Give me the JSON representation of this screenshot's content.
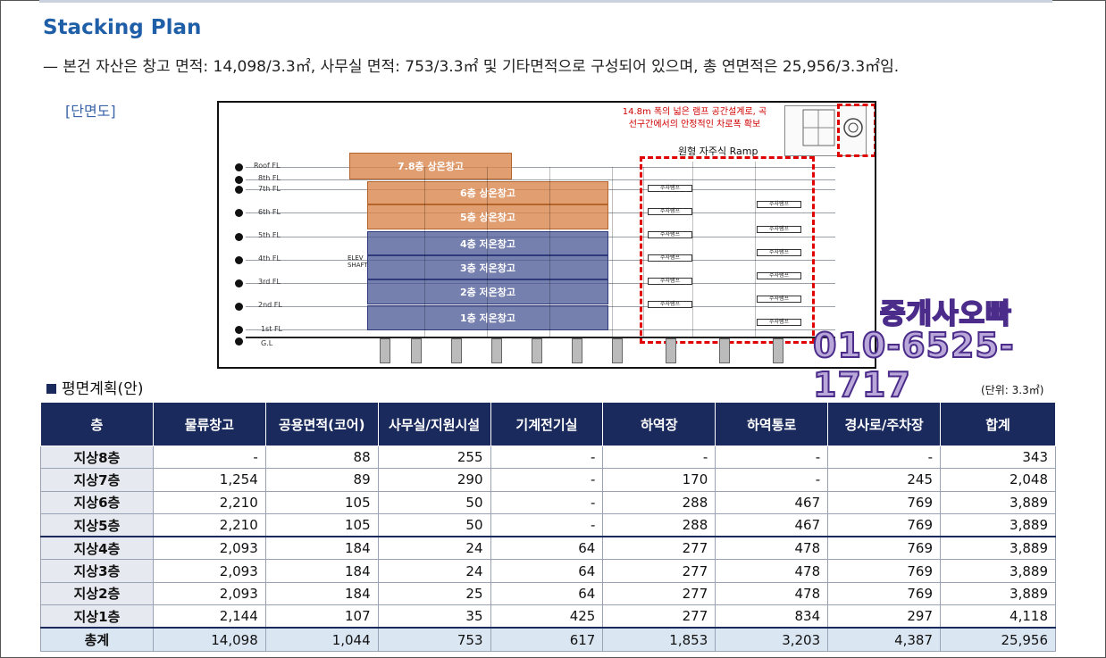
{
  "header": {
    "title": "Stacking Plan",
    "subtitle": "— 본건 자산은 창고 면적: 14,098/3.3㎡, 사무실 면적: 753/3.3㎡ 및 기타면적으로 구성되어 있으며, 총 연면적은 25,956/3.3㎡임.",
    "section_link": "[단면도]"
  },
  "diagram": {
    "note_line1": "14.8m 폭의 넓은 램프 공간설계로, 곡",
    "note_line2": "선구간에서의 안정적인 차로폭 확보",
    "ramp_caption": "원형 자주식 Ramp",
    "floor_levels": [
      "Roof FL",
      "8th FL",
      "7th FL",
      "6th FL",
      "5th FL",
      "4th FL",
      "3rd FL",
      "2nd FL",
      "1st FL",
      "G.L"
    ],
    "bands": [
      {
        "label": "7.8층 상온창고",
        "color": "orange"
      },
      {
        "label": "6층 상온창고",
        "color": "orange"
      },
      {
        "label": "5층 상온창고",
        "color": "orange"
      },
      {
        "label": "4층 저온창고",
        "color": "blue"
      },
      {
        "label": "3층 저온창고",
        "color": "blue"
      },
      {
        "label": "2층 저온창고",
        "color": "blue"
      },
      {
        "label": "1층 저온창고",
        "color": "blue"
      }
    ],
    "ramp_slab_label": "주차램프",
    "elev_label": "ELEV SHAFT"
  },
  "watermark": {
    "line1": "중개사오빠",
    "line2": "010-6525-1717"
  },
  "table_section": {
    "title": "평면계획(안)",
    "unit": "(단위: 3.3㎡)",
    "columns": [
      "층",
      "물류창고",
      "공용면적(코어)",
      "사무실/지원시설",
      "기계전기실",
      "하역장",
      "하역통로",
      "경사로/주차장",
      "합계"
    ],
    "rows": [
      {
        "floor": "지상8층",
        "cells": [
          "-",
          "88",
          "255",
          "-",
          "-",
          "-",
          "-",
          "343"
        ]
      },
      {
        "floor": "지상7층",
        "cells": [
          "1,254",
          "89",
          "290",
          "-",
          "170",
          "-",
          "245",
          "2,048"
        ]
      },
      {
        "floor": "지상6층",
        "cells": [
          "2,210",
          "105",
          "50",
          "-",
          "288",
          "467",
          "769",
          "3,889"
        ]
      },
      {
        "floor": "지상5층",
        "cells": [
          "2,210",
          "105",
          "50",
          "-",
          "288",
          "467",
          "769",
          "3,889"
        ]
      },
      {
        "floor": "지상4층",
        "cells": [
          "2,093",
          "184",
          "24",
          "64",
          "277",
          "478",
          "769",
          "3,889"
        ]
      },
      {
        "floor": "지상3층",
        "cells": [
          "2,093",
          "184",
          "24",
          "64",
          "277",
          "478",
          "769",
          "3,889"
        ]
      },
      {
        "floor": "지상2층",
        "cells": [
          "2,093",
          "184",
          "25",
          "64",
          "277",
          "478",
          "769",
          "3,889"
        ]
      },
      {
        "floor": "지상1층",
        "cells": [
          "2,144",
          "107",
          "35",
          "425",
          "277",
          "834",
          "297",
          "4,118"
        ]
      }
    ],
    "total": {
      "floor": "총계",
      "cells": [
        "14,098",
        "1,044",
        "753",
        "617",
        "1,853",
        "3,203",
        "4,387",
        "25,956"
      ]
    }
  },
  "colors": {
    "title_blue": "#1f5fa8",
    "header_navy": "#1b2a5c",
    "orange_band": "#d98348",
    "blue_band": "#485594",
    "ramp_red": "#e00000"
  }
}
